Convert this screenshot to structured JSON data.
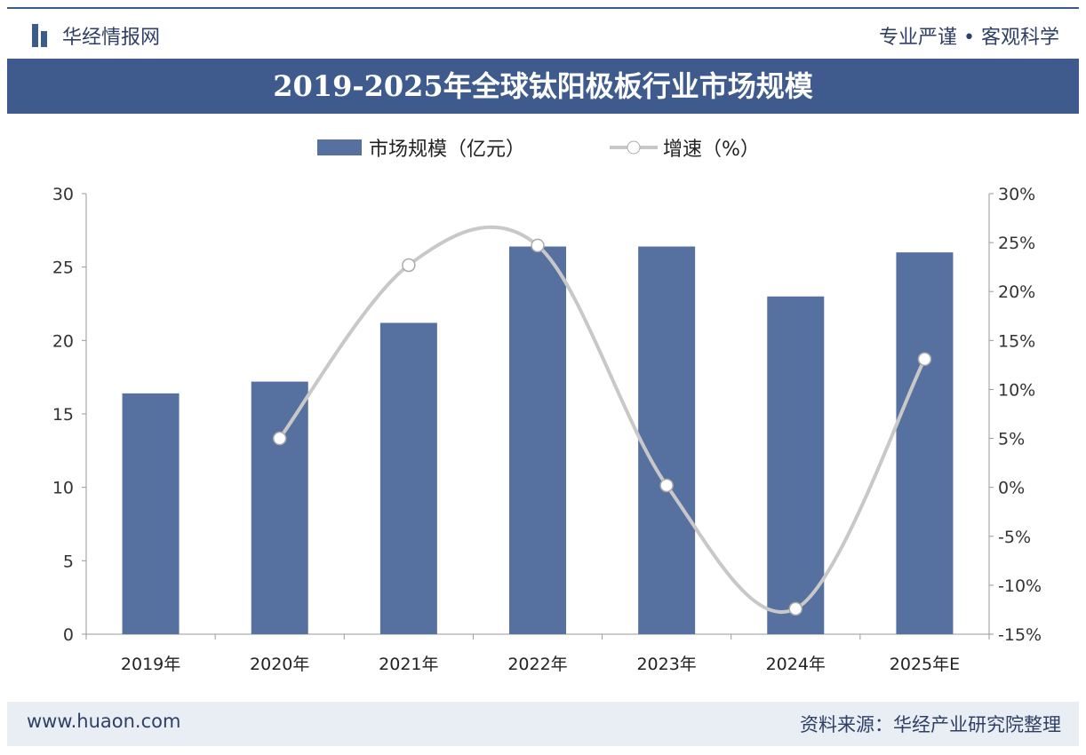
{
  "header": {
    "logo": "华经情报网",
    "slogan": "专业严谨 • 客观科学",
    "title": "2019-2025年全球钛阳极板行业市场规模"
  },
  "footer": {
    "site": "www.huaon.com",
    "source": "资料来源：华经产业研究院整理"
  },
  "colors": {
    "bar": "#56709f",
    "line": "#c8c8c8",
    "banner": "#3f5b8e"
  },
  "chart_data": {
    "type": "bar+line",
    "title": "2019-2025年全球钛阳极板行业市场规模",
    "categories": [
      "2019年",
      "2020年",
      "2021年",
      "2022年",
      "2023年",
      "2024年",
      "2025年E"
    ],
    "series": [
      {
        "name": "市场规模（亿元）",
        "type": "bar",
        "axis": "left",
        "values": [
          16.4,
          17.2,
          21.2,
          26.4,
          26.4,
          23.0,
          26.0
        ]
      },
      {
        "name": "增速（%）",
        "type": "line",
        "axis": "right",
        "values": [
          null,
          5.0,
          22.7,
          24.7,
          0.2,
          -12.4,
          13.1
        ]
      }
    ],
    "left_axis": {
      "ylim": [
        0,
        30
      ],
      "ticks": [
        "0",
        "5",
        "10",
        "15",
        "20",
        "25",
        "30"
      ]
    },
    "right_axis": {
      "ylim": [
        -15,
        30
      ],
      "ticks": [
        "-15%",
        "-10%",
        "-5%",
        "0%",
        "5%",
        "10%",
        "15%",
        "20%",
        "25%",
        "30%"
      ]
    },
    "legend": "top-center"
  }
}
